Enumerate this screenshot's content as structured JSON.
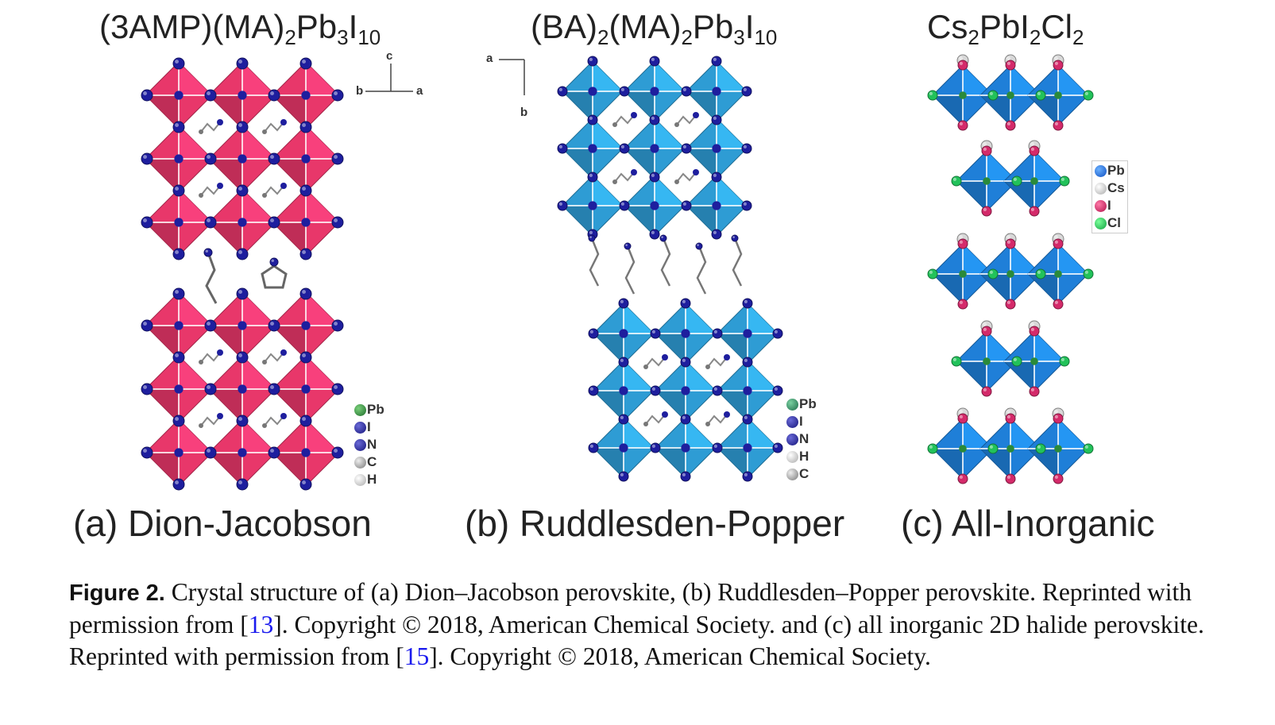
{
  "panels": [
    {
      "title_parts": [
        {
          "t": "(3AMP)(MA)"
        },
        {
          "s": "2"
        },
        {
          "t": "Pb"
        },
        {
          "s": "3"
        },
        {
          "t": "I"
        },
        {
          "s": "10"
        }
      ],
      "label": "(a) Dion-Jacobson",
      "legend": [
        "Pb",
        "I",
        "N",
        "C",
        "H"
      ],
      "axes": {
        "up": "c",
        "left": "b",
        "right": "a"
      }
    },
    {
      "title_parts": [
        {
          "t": "(BA)"
        },
        {
          "s": "2"
        },
        {
          "t": "(MA)"
        },
        {
          "s": "2"
        },
        {
          "t": "Pb"
        },
        {
          "s": "3"
        },
        {
          "t": "I"
        },
        {
          "s": "10"
        }
      ],
      "label": "(b) Ruddlesden-Popper",
      "legend": [
        "Pb",
        "I",
        "N",
        "H",
        "C"
      ],
      "axes": {
        "left": "a",
        "down": "b"
      }
    },
    {
      "title_parts": [
        {
          "t": "Cs"
        },
        {
          "s": "2"
        },
        {
          "t": "PbI"
        },
        {
          "s": "2"
        },
        {
          "t": "Cl"
        },
        {
          "s": "2"
        }
      ],
      "label": "(c) All-Inorganic",
      "legend": [
        "Pb",
        "Cs",
        "I",
        "Cl"
      ]
    }
  ],
  "colors": {
    "dj_octahedron": "#e8376a",
    "rp_octahedron": "#2e9cd4",
    "inorg_octahedron": "#1f7fd8",
    "iodide": "#1e1e9e",
    "lead": "#2a8a3a",
    "chlorine": "#22c25a",
    "iodide_inorganic": "#d42a6a",
    "cesium": "#d8d8d8"
  },
  "caption": {
    "figure_label": "Figure 2.",
    "text_1": " Crystal structure of (a) Dion–Jacobson perovskite, (b) Ruddlesden–Popper perovskite. Reprinted with permission from [",
    "ref_1": "13",
    "text_2": "]. Copyright © 2018, American Chemical Society. and (c) all inorganic 2D halide perovskite. Reprinted with permission from [",
    "ref_2": "15",
    "text_3": "]. Copyright © 2018, American Chemical Society."
  }
}
